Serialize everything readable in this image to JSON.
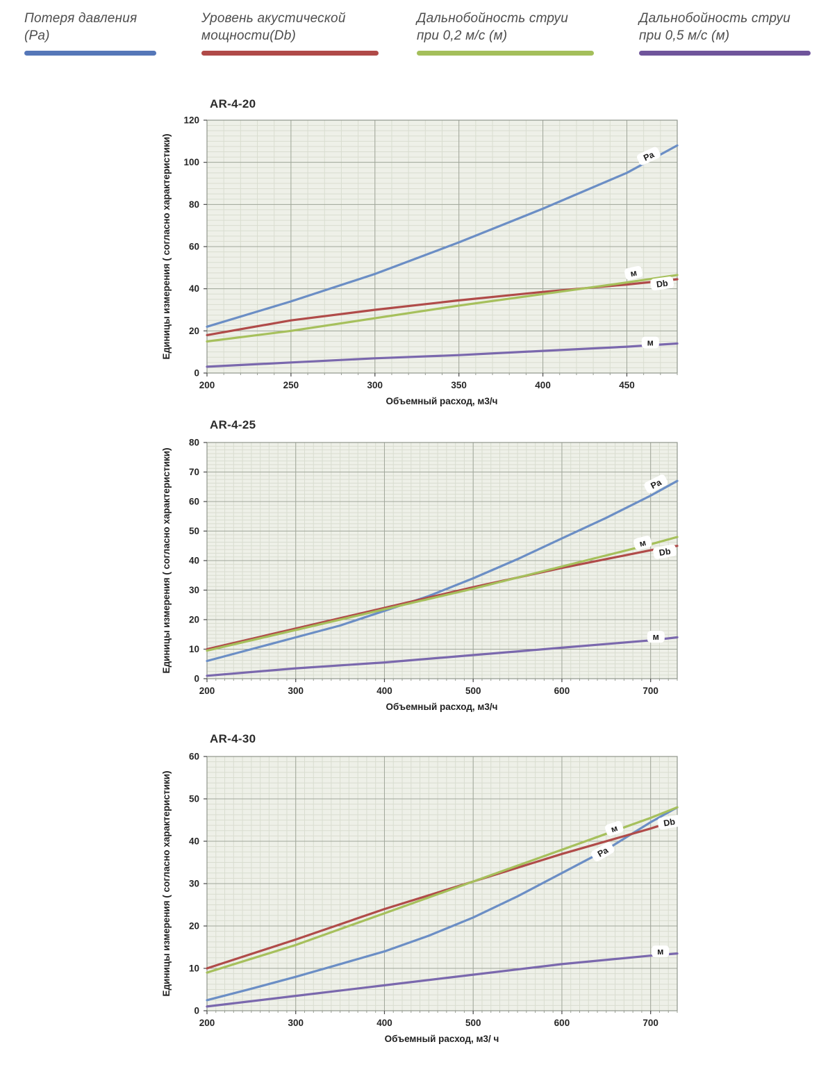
{
  "legend": {
    "items": [
      {
        "line1": "Потеря давления",
        "line2": "(Pa)",
        "color": "#5577b8"
      },
      {
        "line1": "Уровень акустической",
        "line2": "мощности(Db)",
        "color": "#b04a48"
      },
      {
        "line1": "Дальнобойность струи",
        "line2": "при 0,2 м/с (м)",
        "color": "#a4bf5b"
      },
      {
        "line1": "Дальнобойность струи",
        "line2": "при 0,5 м/с (м)",
        "color": "#6f549b"
      }
    ]
  },
  "chart_data": [
    {
      "type": "line",
      "title": "AR-4-20",
      "xlabel": "Объемный расход, м3/ч",
      "ylabel": "Единицы измерения ( согласно характеристики)",
      "xlim": [
        200,
        480
      ],
      "ylim": [
        0,
        120
      ],
      "xticks": [
        200,
        250,
        300,
        350,
        400,
        450
      ],
      "yticks": [
        0,
        20,
        40,
        60,
        80,
        100,
        120
      ],
      "minor_x_step": 10,
      "minor_y_step": 2.5,
      "grid": true,
      "plot_bg": "#eef0e8",
      "series": [
        {
          "name": "Потеря давления (Pa)",
          "color": "#6b8ec5",
          "points": [
            [
              200,
              22
            ],
            [
              250,
              34
            ],
            [
              300,
              47
            ],
            [
              350,
              62
            ],
            [
              400,
              78
            ],
            [
              450,
              95
            ],
            [
              480,
              108
            ]
          ],
          "label": {
            "text": "Pa",
            "x": 463,
            "y": 103,
            "rot": -25
          }
        },
        {
          "name": "Уровень акустической мощности (Db)",
          "color": "#b04b49",
          "points": [
            [
              200,
              18
            ],
            [
              250,
              25
            ],
            [
              300,
              30
            ],
            [
              350,
              34.5
            ],
            [
              400,
              38.5
            ],
            [
              450,
              42
            ],
            [
              480,
              44.5
            ]
          ],
          "label": {
            "text": "Db",
            "x": 471,
            "y": 42.5,
            "rot": -8
          }
        },
        {
          "name": "Дальнобойность струи при 0,2 м/с (м)",
          "color": "#a6c05c",
          "points": [
            [
              200,
              15
            ],
            [
              250,
              20
            ],
            [
              300,
              26
            ],
            [
              350,
              32
            ],
            [
              400,
              37.5
            ],
            [
              450,
              43
            ],
            [
              480,
              46.5
            ]
          ],
          "label": {
            "text": "м",
            "x": 454,
            "y": 47.5,
            "rot": -12
          }
        },
        {
          "name": "Дальнобойность струи при 0,5 м/с (м)",
          "color": "#7a68ad",
          "points": [
            [
              200,
              3
            ],
            [
              250,
              5
            ],
            [
              300,
              7
            ],
            [
              350,
              8.5
            ],
            [
              400,
              10.5
            ],
            [
              450,
              12.5
            ],
            [
              480,
              14
            ]
          ],
          "label": {
            "text": "м",
            "x": 464,
            "y": 14.5,
            "rot": 0
          }
        }
      ]
    },
    {
      "type": "line",
      "title": "AR-4-25",
      "xlabel": "Объемный расход, м3/ч",
      "ylabel": "Единицы измерения ( согласно характеристики)",
      "xlim": [
        200,
        730
      ],
      "ylim": [
        0,
        80
      ],
      "xticks": [
        200,
        300,
        400,
        500,
        600,
        700
      ],
      "yticks": [
        0,
        10,
        20,
        30,
        40,
        50,
        60,
        70,
        80
      ],
      "minor_x_step": 10,
      "minor_y_step": 1.25,
      "grid": true,
      "plot_bg": "#eef0e8",
      "series": [
        {
          "name": "Потеря давления (Pa)",
          "color": "#6b8ec5",
          "points": [
            [
              200,
              6
            ],
            [
              250,
              10
            ],
            [
              300,
              14
            ],
            [
              350,
              18
            ],
            [
              400,
              23
            ],
            [
              450,
              28
            ],
            [
              500,
              34
            ],
            [
              550,
              40.5
            ],
            [
              600,
              47.5
            ],
            [
              650,
              54.5
            ],
            [
              700,
              62
            ],
            [
              730,
              67
            ]
          ],
          "label": {
            "text": "Pa",
            "x": 706,
            "y": 66,
            "rot": -27
          }
        },
        {
          "name": "Уровень акустической мощности (Db)",
          "color": "#b04b49",
          "points": [
            [
              200,
              10
            ],
            [
              300,
              17
            ],
            [
              400,
              24
            ],
            [
              500,
              31
            ],
            [
              600,
              37.5
            ],
            [
              700,
              43.5
            ],
            [
              730,
              45
            ]
          ],
          "label": {
            "text": "Db",
            "x": 716,
            "y": 43,
            "rot": -10
          }
        },
        {
          "name": "Дальнобойность струи при 0,2 м/с (м)",
          "color": "#a6c05c",
          "points": [
            [
              200,
              9.5
            ],
            [
              300,
              16.5
            ],
            [
              400,
              23.5
            ],
            [
              500,
              30.5
            ],
            [
              600,
              38
            ],
            [
              700,
              45.5
            ],
            [
              730,
              48
            ]
          ],
          "label": {
            "text": "м",
            "x": 691,
            "y": 46,
            "rot": -14
          }
        },
        {
          "name": "Дальнобойность струи при 0,5 м/с (м)",
          "color": "#7a68ad",
          "points": [
            [
              200,
              1
            ],
            [
              300,
              3.5
            ],
            [
              400,
              5.5
            ],
            [
              500,
              8
            ],
            [
              600,
              10.5
            ],
            [
              700,
              13
            ],
            [
              730,
              14
            ]
          ],
          "label": {
            "text": "м",
            "x": 706,
            "y": 14.2,
            "rot": 0
          }
        }
      ]
    },
    {
      "type": "line",
      "title": "AR-4-30",
      "xlabel": "Объемный расход, м3/ ч",
      "ylabel": "Единицы измерения ( согласно характеристики)",
      "xlim": [
        200,
        730
      ],
      "ylim": [
        0,
        60
      ],
      "xticks": [
        200,
        300,
        400,
        500,
        600,
        700
      ],
      "yticks": [
        0,
        10,
        20,
        30,
        40,
        50,
        60
      ],
      "minor_x_step": 10,
      "minor_y_step": 1.25,
      "grid": true,
      "plot_bg": "#eef0e8",
      "series": [
        {
          "name": "Потеря давления (Pa)",
          "color": "#6b8ec5",
          "points": [
            [
              200,
              2.5
            ],
            [
              250,
              5.2
            ],
            [
              300,
              8
            ],
            [
              350,
              11
            ],
            [
              400,
              14
            ],
            [
              450,
              17.7
            ],
            [
              500,
              22
            ],
            [
              550,
              27
            ],
            [
              600,
              32.5
            ],
            [
              650,
              38
            ],
            [
              700,
              44.5
            ],
            [
              730,
              48
            ]
          ],
          "label": {
            "text": "Pa",
            "x": 646,
            "y": 37.5,
            "rot": -30
          }
        },
        {
          "name": "Уровень акустической мощности (Db)",
          "color": "#b04b49",
          "points": [
            [
              200,
              10
            ],
            [
              300,
              16.8
            ],
            [
              400,
              24
            ],
            [
              500,
              30.5
            ],
            [
              600,
              37
            ],
            [
              700,
              43
            ],
            [
              730,
              45
            ]
          ],
          "label": {
            "text": "Db",
            "x": 721,
            "y": 44.5,
            "rot": -10
          }
        },
        {
          "name": "Дальнобойность струи при 0,2 м/с (м)",
          "color": "#a6c05c",
          "points": [
            [
              200,
              9
            ],
            [
              300,
              15.5
            ],
            [
              400,
              23
            ],
            [
              500,
              30.5
            ],
            [
              600,
              38
            ],
            [
              700,
              45.5
            ],
            [
              730,
              48
            ]
          ],
          "label": {
            "text": "м",
            "x": 659,
            "y": 43,
            "rot": -18
          }
        },
        {
          "name": "Дальнобойность струи при 0,5 м/с (м)",
          "color": "#7a68ad",
          "points": [
            [
              200,
              1
            ],
            [
              300,
              3.5
            ],
            [
              400,
              6
            ],
            [
              500,
              8.5
            ],
            [
              600,
              11
            ],
            [
              700,
              13
            ],
            [
              730,
              13.5
            ]
          ],
          "label": {
            "text": "м",
            "x": 711,
            "y": 14,
            "rot": 0
          }
        }
      ]
    }
  ]
}
